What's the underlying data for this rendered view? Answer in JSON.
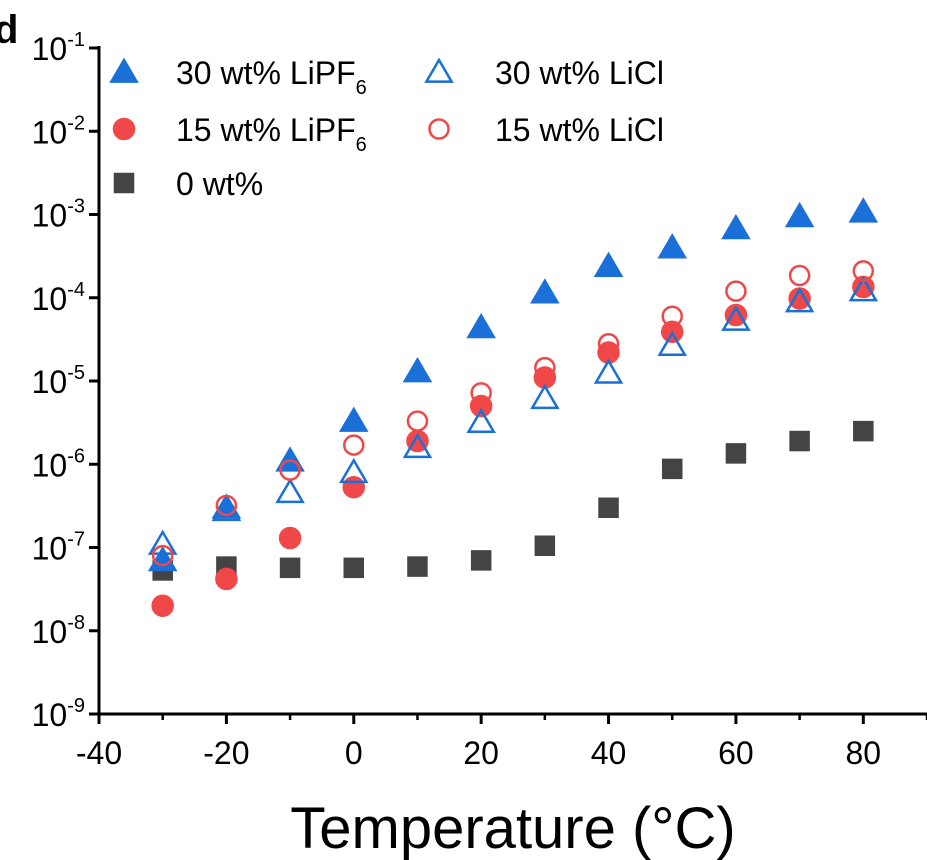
{
  "panel_label": "d",
  "chart_data": {
    "type": "scatter",
    "xlabel": "Temperature (°C)",
    "ylabel": "",
    "xlim": [
      -40,
      90
    ],
    "ylim": [
      1e-09,
      0.1
    ],
    "yscale": "log",
    "x_ticks": [
      "-40",
      "-20",
      "0",
      "20",
      "40",
      "60",
      "80"
    ],
    "x_tick_values": [
      -40,
      -20,
      0,
      20,
      40,
      60,
      80
    ],
    "y_ticks": [
      {
        "base": "10",
        "exp": "-9",
        "value": 1e-09
      },
      {
        "base": "10",
        "exp": "-8",
        "value": 1e-08
      },
      {
        "base": "10",
        "exp": "-7",
        "value": 1e-07
      },
      {
        "base": "10",
        "exp": "-6",
        "value": 1e-06
      },
      {
        "base": "10",
        "exp": "-5",
        "value": 1e-05
      },
      {
        "base": "10",
        "exp": "-4",
        "value": 0.0001
      },
      {
        "base": "10",
        "exp": "-3",
        "value": 0.001
      },
      {
        "base": "10",
        "exp": "-2",
        "value": 0.01
      },
      {
        "base": "10",
        "exp": "-1",
        "value": 0.1
      }
    ],
    "grid": false,
    "legend_position": "top-left",
    "series": [
      {
        "name": "30 wt% LiPF",
        "name_sub": "6",
        "marker": "triangle",
        "filled": true,
        "color": "#1a6fd8",
        "x": [
          -30,
          -20,
          -10,
          0,
          10,
          20,
          30,
          40,
          50,
          60,
          70,
          80
        ],
        "y": [
          7e-08,
          3e-07,
          1.1e-06,
          3.3e-06,
          1.3e-05,
          4.4e-05,
          0.000115,
          0.00024,
          0.0004,
          0.00068,
          0.00095,
          0.00108
        ]
      },
      {
        "name": "30 wt% LiCl",
        "name_sub": "",
        "marker": "triangle",
        "filled": false,
        "color": "#1a6fd8",
        "x": [
          -30,
          -20,
          -10,
          0,
          10,
          20,
          30,
          40,
          50,
          60,
          70,
          80
        ],
        "y": [
          1.1e-07,
          2.8e-07,
          4.6e-07,
          8e-07,
          1.6e-06,
          3.2e-06,
          6.2e-06,
          1.25e-05,
          2.7e-05,
          5.4e-05,
          9e-05,
          0.000122
        ]
      },
      {
        "name": "15 wt% LiPF",
        "name_sub": "6",
        "marker": "circle",
        "filled": true,
        "color": "#f04848",
        "x": [
          -30,
          -20,
          -10,
          0,
          10,
          20,
          30,
          40,
          50,
          60,
          70,
          80
        ],
        "y": [
          2e-08,
          4.2e-08,
          1.3e-07,
          5.3e-07,
          1.9e-06,
          5e-06,
          1.1e-05,
          2.2e-05,
          3.9e-05,
          6.2e-05,
          9.8e-05,
          0.000135
        ]
      },
      {
        "name": "15 wt% LiCl",
        "name_sub": "",
        "marker": "circle",
        "filled": false,
        "color": "#f04848",
        "x": [
          -30,
          -20,
          -10,
          0,
          10,
          20,
          30,
          40,
          50,
          60,
          70,
          80
        ],
        "y": [
          8e-08,
          3.2e-07,
          8.5e-07,
          1.7e-06,
          3.3e-06,
          7.2e-06,
          1.45e-05,
          2.8e-05,
          6e-05,
          0.00012,
          0.000185,
          0.00021
        ]
      },
      {
        "name": "0 wt%",
        "name_sub": "",
        "marker": "square",
        "filled": true,
        "color": "#444444",
        "x": [
          -30,
          -20,
          -10,
          0,
          10,
          20,
          30,
          40,
          50,
          60,
          70,
          80
        ],
        "y": [
          5.3e-08,
          5.9e-08,
          5.7e-08,
          5.7e-08,
          5.9e-08,
          7e-08,
          1.05e-07,
          3e-07,
          8.8e-07,
          1.35e-06,
          1.9e-06,
          2.5e-06
        ]
      }
    ]
  }
}
